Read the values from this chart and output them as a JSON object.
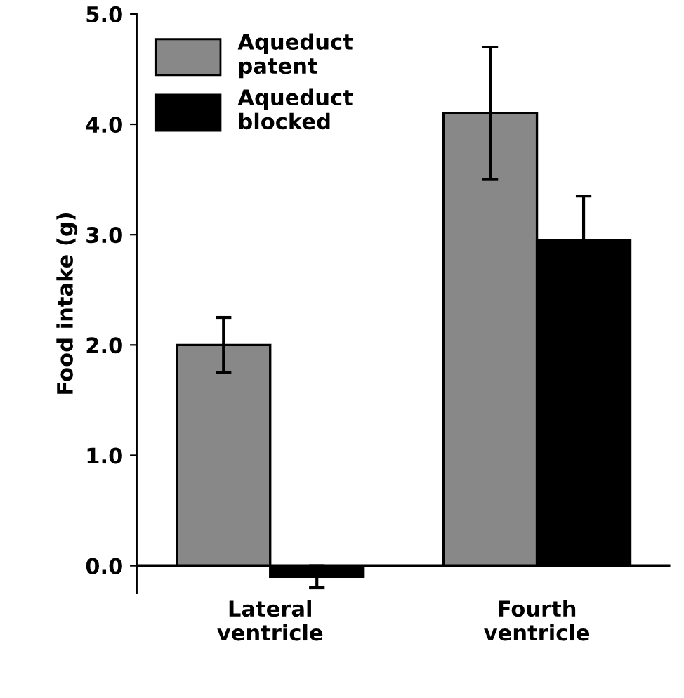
{
  "chart_data": {
    "type": "bar",
    "ylabel": "Food intake (g)",
    "categories": [
      "Lateral\nventricle",
      "Fourth\nventricle"
    ],
    "series": [
      {
        "name": "Aqueduct\npatent",
        "color": "#888888",
        "values": [
          2.0,
          4.1
        ],
        "errors": [
          0.25,
          0.6
        ]
      },
      {
        "name": "Aqueduct\nblocked",
        "color": "#000000",
        "values": [
          -0.1,
          2.95
        ],
        "errors": [
          0.1,
          0.4
        ]
      }
    ],
    "ylim": [
      -0.25,
      5.0
    ],
    "yticks": [
      {
        "value": 0,
        "label": "0.0"
      },
      {
        "value": 1,
        "label": "1.0"
      },
      {
        "value": 2,
        "label": "2.0"
      },
      {
        "value": 3,
        "label": "3.0"
      },
      {
        "value": 4,
        "label": "4.0"
      },
      {
        "value": 5,
        "label": "5.0"
      }
    ],
    "grid": false,
    "legend": "top left"
  }
}
